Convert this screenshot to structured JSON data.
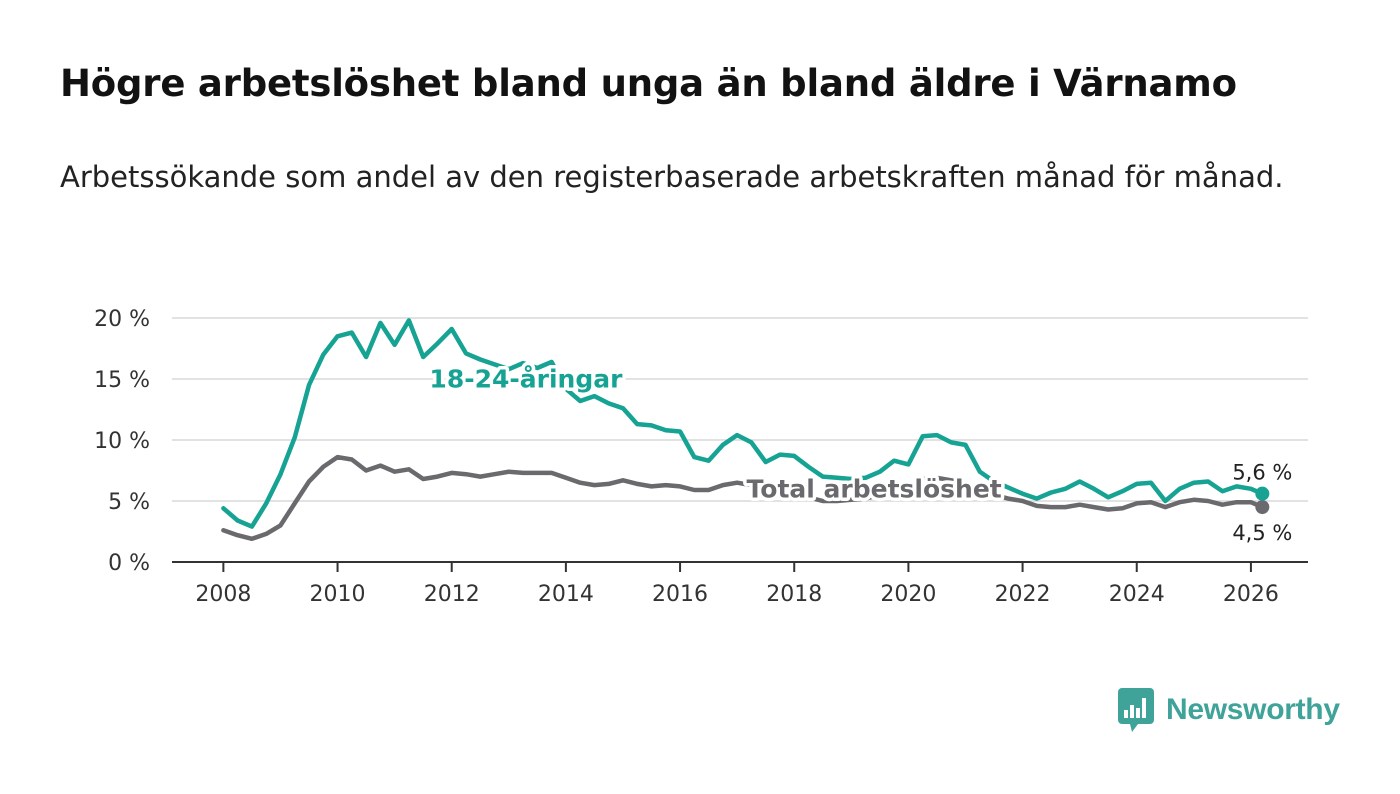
{
  "title": "Högre arbetslöshet bland unga än bland äldre i Värnamo",
  "subtitle": "Arbetssökande som andel av den registerbaserade arbetskraften månad för månad.",
  "brand": {
    "name": "Newsworthy",
    "icon": "newsworthy-logo-icon",
    "color": "#3fa39a"
  },
  "chart_data": {
    "type": "line",
    "title": "Högre arbetslöshet bland unga än bland äldre i Värnamo",
    "xlabel": "",
    "ylabel": "",
    "xlim": [
      2007.1,
      2027.0
    ],
    "ylim": [
      0,
      20
    ],
    "grid": true,
    "x_ticks": [
      2008,
      2010,
      2012,
      2014,
      2016,
      2018,
      2020,
      2022,
      2024,
      2026
    ],
    "x_tick_labels": [
      "2008",
      "2010",
      "2012",
      "2014",
      "2016",
      "2018",
      "2020",
      "2022",
      "2024",
      "2026"
    ],
    "y_ticks": [
      0,
      5,
      10,
      15,
      20
    ],
    "y_tick_labels": [
      "0 %",
      "5 %",
      "10 %",
      "15 %",
      "20 %"
    ],
    "series": [
      {
        "name": "18-24-åringar",
        "color": "#16a394",
        "label": "18-24-åringar",
        "end_label": "5,6 %",
        "points": [
          [
            2008.0,
            4.4
          ],
          [
            2008.25,
            3.4
          ],
          [
            2008.5,
            2.9
          ],
          [
            2008.75,
            4.8
          ],
          [
            2009.0,
            7.2
          ],
          [
            2009.25,
            10.2
          ],
          [
            2009.5,
            14.5
          ],
          [
            2009.75,
            17.0
          ],
          [
            2010.0,
            18.5
          ],
          [
            2010.25,
            18.8
          ],
          [
            2010.5,
            16.8
          ],
          [
            2010.75,
            19.6
          ],
          [
            2011.0,
            17.8
          ],
          [
            2011.25,
            19.8
          ],
          [
            2011.5,
            16.8
          ],
          [
            2011.75,
            17.9
          ],
          [
            2012.0,
            19.1
          ],
          [
            2012.25,
            17.1
          ],
          [
            2012.5,
            16.6
          ],
          [
            2012.75,
            16.2
          ],
          [
            2013.0,
            15.8
          ],
          [
            2013.25,
            16.3
          ],
          [
            2013.5,
            15.9
          ],
          [
            2013.75,
            16.4
          ],
          [
            2014.0,
            14.2
          ],
          [
            2014.25,
            13.2
          ],
          [
            2014.5,
            13.6
          ],
          [
            2014.75,
            13.0
          ],
          [
            2015.0,
            12.6
          ],
          [
            2015.25,
            11.3
          ],
          [
            2015.5,
            11.2
          ],
          [
            2015.75,
            10.8
          ],
          [
            2016.0,
            10.7
          ],
          [
            2016.25,
            8.6
          ],
          [
            2016.5,
            8.3
          ],
          [
            2016.75,
            9.6
          ],
          [
            2017.0,
            10.4
          ],
          [
            2017.25,
            9.8
          ],
          [
            2017.5,
            8.2
          ],
          [
            2017.75,
            8.8
          ],
          [
            2018.0,
            8.7
          ],
          [
            2018.25,
            7.8
          ],
          [
            2018.5,
            7.0
          ],
          [
            2018.75,
            6.9
          ],
          [
            2019.0,
            6.8
          ],
          [
            2019.25,
            6.9
          ],
          [
            2019.5,
            7.4
          ],
          [
            2019.75,
            8.3
          ],
          [
            2020.0,
            8.0
          ],
          [
            2020.25,
            10.3
          ],
          [
            2020.5,
            10.4
          ],
          [
            2020.75,
            9.8
          ],
          [
            2021.0,
            9.6
          ],
          [
            2021.25,
            7.4
          ],
          [
            2021.5,
            6.6
          ],
          [
            2021.75,
            6.1
          ],
          [
            2022.0,
            5.6
          ],
          [
            2022.25,
            5.2
          ],
          [
            2022.5,
            5.7
          ],
          [
            2022.75,
            6.0
          ],
          [
            2023.0,
            6.6
          ],
          [
            2023.25,
            6.0
          ],
          [
            2023.5,
            5.3
          ],
          [
            2023.75,
            5.8
          ],
          [
            2024.0,
            6.4
          ],
          [
            2024.25,
            6.5
          ],
          [
            2024.5,
            5.0
          ],
          [
            2024.75,
            6.0
          ],
          [
            2025.0,
            6.5
          ],
          [
            2025.25,
            6.6
          ],
          [
            2025.5,
            5.8
          ],
          [
            2025.75,
            6.2
          ],
          [
            2026.0,
            6.0
          ],
          [
            2026.2,
            5.6
          ]
        ]
      },
      {
        "name": "Total arbetslöshet",
        "color": "#6a6a6e",
        "label": "Total arbetslöshet",
        "end_label": "4,5 %",
        "points": [
          [
            2008.0,
            2.6
          ],
          [
            2008.25,
            2.2
          ],
          [
            2008.5,
            1.9
          ],
          [
            2008.75,
            2.3
          ],
          [
            2009.0,
            3.0
          ],
          [
            2009.25,
            4.8
          ],
          [
            2009.5,
            6.6
          ],
          [
            2009.75,
            7.8
          ],
          [
            2010.0,
            8.6
          ],
          [
            2010.25,
            8.4
          ],
          [
            2010.5,
            7.5
          ],
          [
            2010.75,
            7.9
          ],
          [
            2011.0,
            7.4
          ],
          [
            2011.25,
            7.6
          ],
          [
            2011.5,
            6.8
          ],
          [
            2011.75,
            7.0
          ],
          [
            2012.0,
            7.3
          ],
          [
            2012.25,
            7.2
          ],
          [
            2012.5,
            7.0
          ],
          [
            2012.75,
            7.2
          ],
          [
            2013.0,
            7.4
          ],
          [
            2013.25,
            7.3
          ],
          [
            2013.5,
            7.3
          ],
          [
            2013.75,
            7.3
          ],
          [
            2014.0,
            6.9
          ],
          [
            2014.25,
            6.5
          ],
          [
            2014.5,
            6.3
          ],
          [
            2014.75,
            6.4
          ],
          [
            2015.0,
            6.7
          ],
          [
            2015.25,
            6.4
          ],
          [
            2015.5,
            6.2
          ],
          [
            2015.75,
            6.3
          ],
          [
            2016.0,
            6.2
          ],
          [
            2016.25,
            5.9
          ],
          [
            2016.5,
            5.9
          ],
          [
            2016.75,
            6.3
          ],
          [
            2017.0,
            6.5
          ],
          [
            2017.25,
            6.3
          ],
          [
            2017.5,
            5.8
          ],
          [
            2017.75,
            6.0
          ],
          [
            2018.0,
            5.7
          ],
          [
            2018.25,
            5.3
          ],
          [
            2018.5,
            5.0
          ],
          [
            2018.75,
            5.0
          ],
          [
            2019.0,
            5.1
          ],
          [
            2019.25,
            5.2
          ],
          [
            2019.5,
            5.5
          ],
          [
            2019.75,
            5.7
          ],
          [
            2020.0,
            6.0
          ],
          [
            2020.25,
            6.8
          ],
          [
            2020.5,
            6.9
          ],
          [
            2020.75,
            6.7
          ],
          [
            2021.0,
            6.5
          ],
          [
            2021.25,
            5.9
          ],
          [
            2021.5,
            5.5
          ],
          [
            2021.75,
            5.2
          ],
          [
            2022.0,
            5.0
          ],
          [
            2022.25,
            4.6
          ],
          [
            2022.5,
            4.5
          ],
          [
            2022.75,
            4.5
          ],
          [
            2023.0,
            4.7
          ],
          [
            2023.25,
            4.5
          ],
          [
            2023.5,
            4.3
          ],
          [
            2023.75,
            4.4
          ],
          [
            2024.0,
            4.8
          ],
          [
            2024.25,
            4.9
          ],
          [
            2024.5,
            4.5
          ],
          [
            2024.75,
            4.9
          ],
          [
            2025.0,
            5.1
          ],
          [
            2025.25,
            5.0
          ],
          [
            2025.5,
            4.7
          ],
          [
            2025.75,
            4.9
          ],
          [
            2026.0,
            4.9
          ],
          [
            2026.2,
            4.5
          ]
        ]
      }
    ]
  }
}
